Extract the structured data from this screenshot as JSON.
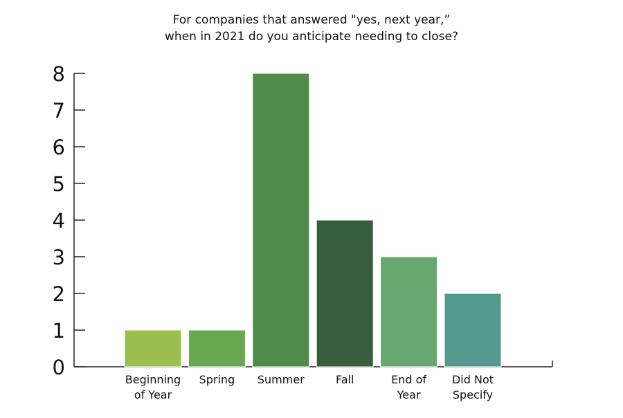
{
  "chart_data": {
    "type": "bar",
    "title_lines": [
      "For companies that answered \"yes, next year,”",
      "when in 2021 do you anticipate needing to close?"
    ],
    "categories": [
      [
        "Beginning",
        "of Year"
      ],
      [
        "Spring"
      ],
      [
        "Summer"
      ],
      [
        "Fall"
      ],
      [
        "End of",
        "Year"
      ],
      [
        "Did Not",
        "Specify"
      ]
    ],
    "values": [
      1,
      1,
      8,
      4,
      3,
      2
    ],
    "colors": [
      "#9bbf4f",
      "#69a84f",
      "#4f8b4a",
      "#375e3c",
      "#66a870",
      "#559a8e"
    ],
    "ylim": [
      0,
      8
    ],
    "yticks": [
      0,
      1,
      2,
      3,
      4,
      5,
      6,
      7,
      8
    ],
    "grid": false,
    "legend": "none"
  }
}
